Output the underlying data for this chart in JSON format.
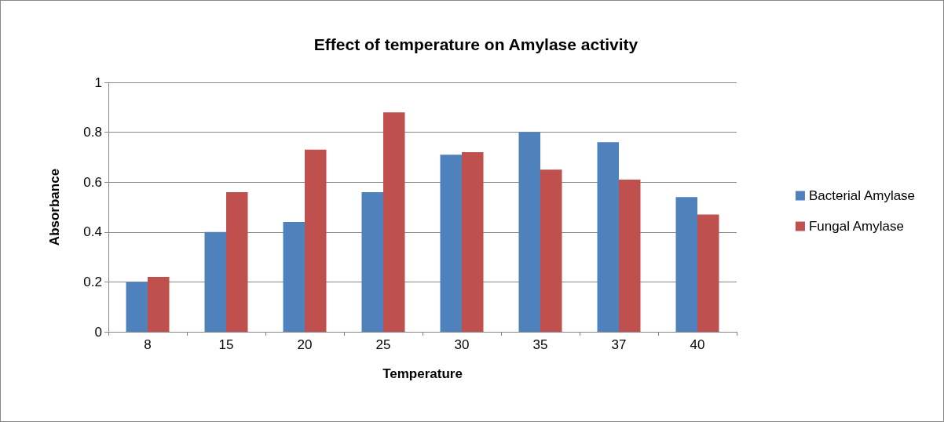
{
  "chart_data": {
    "type": "bar",
    "title": "Effect of temperature on Amylase activity",
    "xlabel": "Temperature",
    "ylabel": "Absorbance",
    "categories": [
      "8",
      "15",
      "20",
      "25",
      "30",
      "35",
      "37",
      "40"
    ],
    "series": [
      {
        "name": "Bacterial Amylase",
        "color": "#4f81bd",
        "values": [
          0.2,
          0.4,
          0.44,
          0.56,
          0.71,
          0.8,
          0.76,
          0.54
        ]
      },
      {
        "name": "Fungal Amylase",
        "color": "#c0504d",
        "values": [
          0.22,
          0.56,
          0.73,
          0.88,
          0.72,
          0.65,
          0.61,
          0.47
        ]
      }
    ],
    "ylim": [
      0,
      1
    ],
    "yticks": [
      0,
      0.2,
      0.4,
      0.6,
      0.8,
      1
    ],
    "grid": "y",
    "legend": "right"
  }
}
